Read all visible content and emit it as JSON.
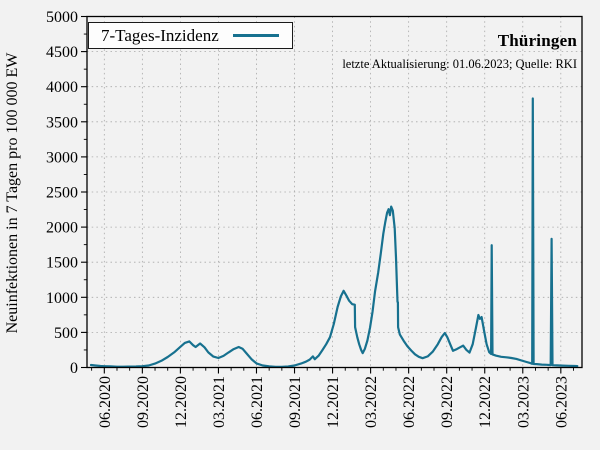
{
  "figure": {
    "title": "Thüringen",
    "subtitle": "letzte Aktualisierung: 01.06.2023; Quelle: RKI",
    "legend_label": "7-Tages-Inzidenz",
    "ylabel": "Neuinfektionen in 7 Tagen pro 100 000 EW"
  },
  "colors": {
    "line": "#17718f",
    "background": "#f2f2f2",
    "grid": "#a8a8a8",
    "spine": "#000000",
    "legend_bg": "#fdfdfd"
  },
  "chart_data": {
    "type": "line",
    "title": "Thüringen",
    "subtitle": "letzte Aktualisierung: 01.06.2023; Quelle: RKI",
    "ylabel": "Neuinfektionen in 7 Tagen pro 100 000 EW",
    "xlabel": "",
    "grid": true,
    "legend_position": "upper left",
    "x_unit": "months since 2020-06-01",
    "xlim": [
      -1.365,
      37.67
    ],
    "ylim": [
      0,
      5000
    ],
    "y_ticks": [
      0,
      500,
      1000,
      1500,
      2000,
      2500,
      3000,
      3500,
      4000,
      4500,
      5000
    ],
    "y_minor_step": 250,
    "x_tick_months": [
      0,
      3,
      6,
      9,
      12,
      15,
      18,
      21,
      24,
      27,
      30,
      33,
      36
    ],
    "x_tick_labels": [
      "06.2020",
      "09.2020",
      "12.2020",
      "03.2021",
      "06.2021",
      "09.2021",
      "12.2021",
      "03.2022",
      "06.2022",
      "09.2022",
      "12.2022",
      "03.2023",
      "06.2023"
    ],
    "x_minor_step": 1,
    "series": [
      {
        "name": "7-Tages-Inzidenz",
        "color": "#17718f",
        "points": [
          [
            -1.05,
            35
          ],
          [
            -0.7,
            28
          ],
          [
            -0.3,
            22
          ],
          [
            0,
            19
          ],
          [
            0.5,
            15
          ],
          [
            1,
            12
          ],
          [
            1.5,
            11
          ],
          [
            2,
            13
          ],
          [
            2.5,
            14
          ],
          [
            3,
            18
          ],
          [
            3.5,
            28
          ],
          [
            4,
            55
          ],
          [
            4.5,
            95
          ],
          [
            5,
            150
          ],
          [
            5.5,
            215
          ],
          [
            6,
            295
          ],
          [
            6.35,
            350
          ],
          [
            6.7,
            372
          ],
          [
            7.0,
            318
          ],
          [
            7.2,
            292
          ],
          [
            7.55,
            342
          ],
          [
            7.9,
            288
          ],
          [
            8.2,
            215
          ],
          [
            8.6,
            155
          ],
          [
            9,
            135
          ],
          [
            9.4,
            165
          ],
          [
            9.8,
            215
          ],
          [
            10.2,
            262
          ],
          [
            10.6,
            292
          ],
          [
            10.9,
            268
          ],
          [
            11.2,
            205
          ],
          [
            11.6,
            120
          ],
          [
            12,
            58
          ],
          [
            12.5,
            28
          ],
          [
            13,
            15
          ],
          [
            13.5,
            10
          ],
          [
            14,
            9
          ],
          [
            14.5,
            14
          ],
          [
            15,
            28
          ],
          [
            15.5,
            55
          ],
          [
            15.9,
            82
          ],
          [
            16.2,
            112
          ],
          [
            16.45,
            158
          ],
          [
            16.6,
            118
          ],
          [
            16.9,
            168
          ],
          [
            17.2,
            248
          ],
          [
            17.5,
            332
          ],
          [
            17.8,
            432
          ],
          [
            18.1,
            620
          ],
          [
            18.4,
            862
          ],
          [
            18.65,
            1012
          ],
          [
            18.87,
            1092
          ],
          [
            19.1,
            1022
          ],
          [
            19.3,
            952
          ],
          [
            19.55,
            902
          ],
          [
            19.75,
            895
          ],
          [
            19.78,
            575
          ],
          [
            19.95,
            430
          ],
          [
            20.1,
            330
          ],
          [
            20.25,
            250
          ],
          [
            20.38,
            205
          ],
          [
            20.55,
            268
          ],
          [
            20.75,
            385
          ],
          [
            20.95,
            565
          ],
          [
            21.15,
            790
          ],
          [
            21.35,
            1080
          ],
          [
            21.6,
            1355
          ],
          [
            21.8,
            1625
          ],
          [
            22,
            1905
          ],
          [
            22.15,
            2065
          ],
          [
            22.3,
            2205
          ],
          [
            22.42,
            2255
          ],
          [
            22.52,
            2170
          ],
          [
            22.62,
            2292
          ],
          [
            22.75,
            2235
          ],
          [
            22.9,
            1985
          ],
          [
            23.0,
            1565
          ],
          [
            23.07,
            1185
          ],
          [
            23.12,
            935
          ],
          [
            23.15,
            930
          ],
          [
            23.17,
            572
          ],
          [
            23.3,
            472
          ],
          [
            23.6,
            382
          ],
          [
            23.9,
            302
          ],
          [
            24.2,
            242
          ],
          [
            24.5,
            188
          ],
          [
            24.8,
            152
          ],
          [
            25.1,
            132
          ],
          [
            25.5,
            158
          ],
          [
            25.9,
            225
          ],
          [
            26.3,
            332
          ],
          [
            26.6,
            432
          ],
          [
            26.85,
            492
          ],
          [
            27.05,
            432
          ],
          [
            27.3,
            322
          ],
          [
            27.5,
            238
          ],
          [
            27.8,
            262
          ],
          [
            28.05,
            288
          ],
          [
            28.3,
            312
          ],
          [
            28.55,
            252
          ],
          [
            28.8,
            212
          ],
          [
            29.05,
            332
          ],
          [
            29.3,
            562
          ],
          [
            29.5,
            748
          ],
          [
            29.62,
            692
          ],
          [
            29.75,
            718
          ],
          [
            29.95,
            522
          ],
          [
            30.15,
            332
          ],
          [
            30.35,
            218
          ],
          [
            30.5,
            192
          ],
          [
            30.55,
            1742
          ],
          [
            30.61,
            186
          ],
          [
            30.9,
            168
          ],
          [
            31.3,
            152
          ],
          [
            31.7,
            145
          ],
          [
            32.1,
            135
          ],
          [
            32.5,
            122
          ],
          [
            32.9,
            100
          ],
          [
            33.3,
            78
          ],
          [
            33.6,
            62
          ],
          [
            33.74,
            52
          ],
          [
            33.79,
            3832
          ],
          [
            33.85,
            50
          ],
          [
            34.1,
            48
          ],
          [
            34.5,
            42
          ],
          [
            34.9,
            38
          ],
          [
            35.2,
            34
          ],
          [
            35.27,
            1832
          ],
          [
            35.34,
            33
          ],
          [
            35.7,
            30
          ],
          [
            36.1,
            27
          ],
          [
            36.6,
            24
          ],
          [
            37.1,
            21
          ],
          [
            37.3,
            20
          ]
        ]
      }
    ]
  }
}
